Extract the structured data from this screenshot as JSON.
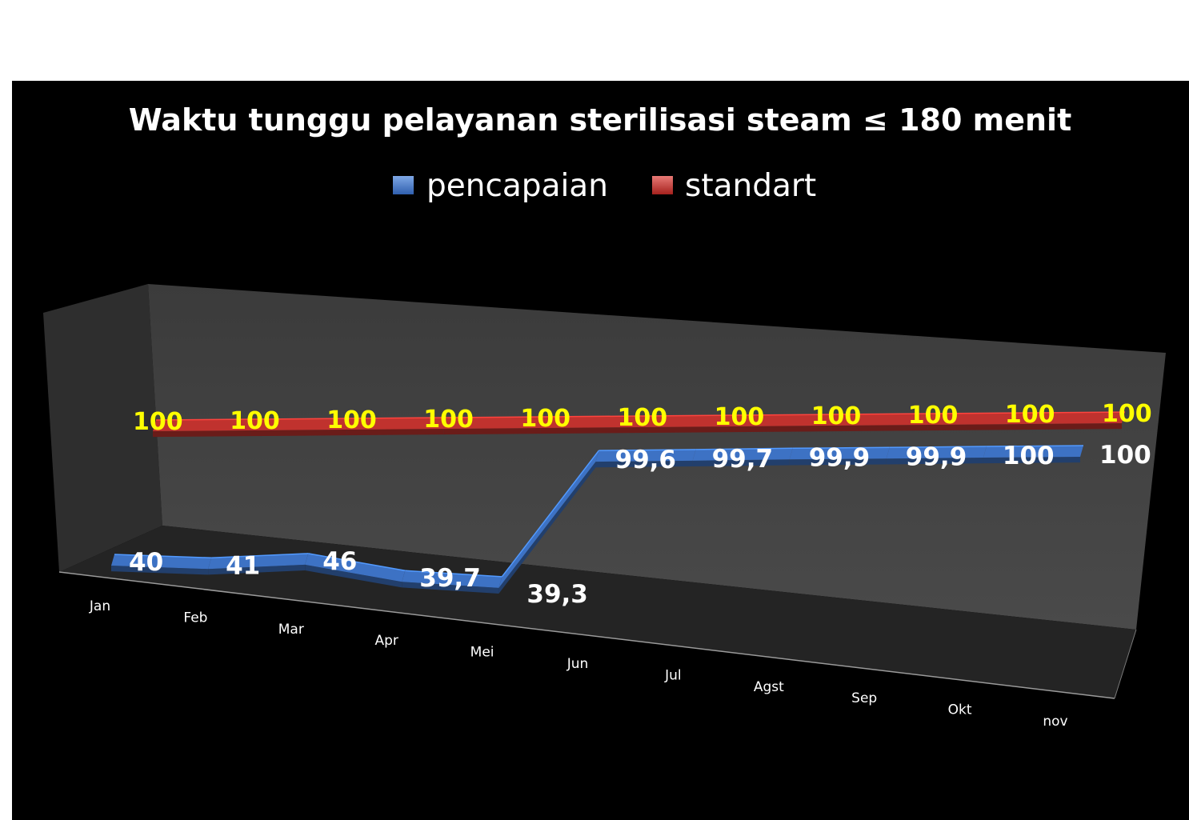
{
  "chart_data": {
    "type": "line",
    "style": "3d-ribbon",
    "title": "Waktu tunggu pelayanan sterilisasi steam ≤ 180 menit",
    "categories": [
      "Jan",
      "Feb",
      "Mar",
      "Apr",
      "Mei",
      "Jun",
      "Jul",
      "Agst",
      "Sep",
      "Okt",
      "nov"
    ],
    "series": [
      {
        "name": "pencapaian",
        "values": [
          40,
          41,
          46,
          39.7,
          39.3,
          99.6,
          99.7,
          99.9,
          99.9,
          100,
          100
        ],
        "labels": [
          "40",
          "41",
          "46",
          "39,7",
          "39,3",
          "99,6",
          "99,7",
          "99,9",
          "99,9",
          "100",
          "100"
        ],
        "color": "#3d72c4",
        "label_color": "#ffffff"
      },
      {
        "name": "standart",
        "values": [
          100,
          100,
          100,
          100,
          100,
          100,
          100,
          100,
          100,
          100,
          100
        ],
        "labels": [
          "100",
          "100",
          "100",
          "100",
          "100",
          "100",
          "100",
          "100",
          "100",
          "100",
          "100"
        ],
        "color": "#c0322e",
        "label_color": "#ffff00"
      }
    ],
    "legend_position": "top",
    "background": "#000000",
    "grid": false
  }
}
